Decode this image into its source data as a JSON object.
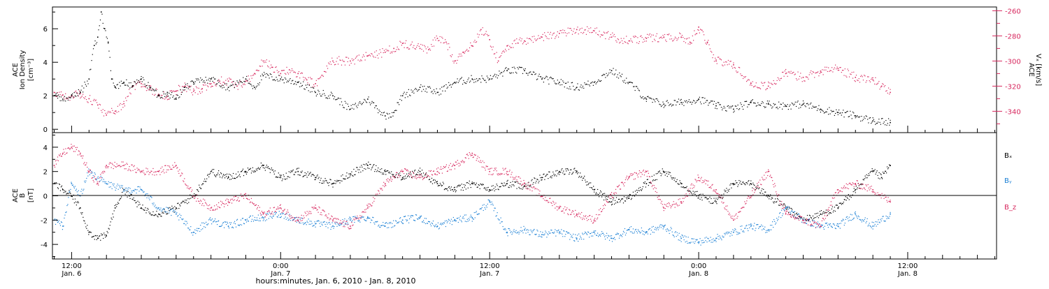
{
  "colors": {
    "axes": "#000000",
    "density": "#000000",
    "vx": "#d7265d",
    "bx": "#000000",
    "by": "#1a7fd4",
    "bz": "#d7265d"
  },
  "x_axis": {
    "title": "hours:minutes, Jan.  6, 2010 - Jan.  8, 2010",
    "ticks": [
      {
        "hour": 0,
        "time": "12:00",
        "date": "Jan. 6"
      },
      {
        "hour": 12,
        "time": "0:00",
        "date": "Jan. 7"
      },
      {
        "hour": 24,
        "time": "12:00",
        "date": "Jan. 7"
      },
      {
        "hour": 36,
        "time": "0:00",
        "date": "Jan. 8"
      },
      {
        "hour": 48,
        "time": "12:00",
        "date": "Jan. 8"
      }
    ]
  },
  "chart_data": [
    {
      "type": "scatter",
      "panel": "top",
      "xlim_hours": [
        -1.1,
        53.1
      ],
      "left_axis": {
        "label_line1": "ACE",
        "label_line2": "Ion Density",
        "units": "[cm⁻³]",
        "ylim": [
          -0.2,
          7.3
        ],
        "ticks": [
          0,
          2,
          4,
          6
        ]
      },
      "right_axis": {
        "label_line1": "ACE",
        "label_line2": "Vₓ [km/s]",
        "ylim": [
          -357,
          -257
        ],
        "ticks": [
          -340,
          -320,
          -300,
          -280,
          -260
        ]
      },
      "series": [
        {
          "name": "Ion Density",
          "axis": "left",
          "color": "#000000",
          "x": [
            -1.0,
            -0.5,
            0.0,
            0.5,
            1.0,
            1.3,
            1.5,
            1.7,
            1.9,
            2.1,
            2.3,
            2.5,
            3.0,
            3.5,
            4.0,
            4.5,
            5.0,
            5.5,
            6.0,
            6.5,
            7.0,
            8.0,
            9.0,
            10.0,
            10.5,
            11.0,
            12.0,
            13.0,
            14.0,
            15.0,
            16.0,
            17.0,
            18.0,
            18.5,
            19.0,
            20.0,
            21.0,
            22.0,
            23.0,
            24.0,
            25.0,
            26.0,
            27.0,
            28.0,
            29.0,
            30.0,
            31.0,
            32.0,
            33.0,
            34.0,
            35.0,
            36.0,
            37.0,
            38.0,
            39.0,
            40.0,
            41.0,
            42.0,
            43.0,
            44.0,
            45.0,
            46.0,
            47.0
          ],
          "values": [
            2.0,
            1.8,
            2.0,
            2.2,
            3.0,
            5.0,
            5.5,
            7.0,
            6.0,
            5.2,
            3.0,
            2.5,
            2.8,
            2.6,
            3.0,
            2.5,
            2.0,
            2.2,
            1.8,
            2.5,
            2.8,
            3.0,
            2.5,
            3.0,
            2.5,
            3.2,
            3.0,
            2.8,
            2.2,
            2.0,
            1.2,
            1.8,
            0.8,
            1.0,
            2.0,
            2.5,
            2.2,
            2.8,
            3.0,
            3.0,
            3.5,
            3.5,
            3.0,
            2.8,
            2.5,
            2.8,
            3.5,
            2.8,
            1.8,
            1.5,
            1.6,
            1.8,
            1.4,
            1.2,
            1.6,
            1.5,
            1.4,
            1.5,
            1.2,
            1.0,
            0.8,
            0.5,
            0.4
          ]
        },
        {
          "name": "Vₓ",
          "axis": "right",
          "color": "#d7265d",
          "x": [
            -1.0,
            -0.5,
            0.0,
            0.5,
            1.0,
            1.5,
            2.0,
            2.5,
            3.0,
            3.5,
            4.0,
            4.5,
            5.0,
            5.5,
            6.0,
            6.5,
            7.0,
            7.5,
            8.0,
            8.5,
            9.0,
            9.5,
            10.0,
            10.5,
            11.0,
            11.5,
            12.0,
            12.5,
            13.0,
            13.5,
            14.0,
            15.0,
            16.0,
            17.0,
            18.0,
            18.5,
            19.0,
            20.0,
            20.5,
            21.0,
            21.5,
            22.0,
            22.5,
            23.0,
            23.5,
            24.0,
            24.5,
            25.0,
            26.0,
            27.0,
            28.0,
            29.0,
            30.0,
            31.0,
            32.0,
            33.0,
            34.0,
            35.0,
            35.5,
            36.0,
            36.5,
            37.0,
            38.0,
            39.0,
            40.0,
            41.0,
            42.0,
            43.0,
            44.0,
            45.0,
            46.0,
            46.5,
            47.0
          ],
          "values": [
            -325,
            -327,
            -328,
            -326,
            -330,
            -335,
            -343,
            -340,
            -334,
            -320,
            -318,
            -322,
            -327,
            -328,
            -324,
            -320,
            -324,
            -322,
            -318,
            -316,
            -316,
            -320,
            -316,
            -310,
            -300,
            -305,
            -310,
            -307,
            -310,
            -315,
            -318,
            -300,
            -300,
            -296,
            -293,
            -290,
            -286,
            -290,
            -291,
            -282,
            -285,
            -300,
            -293,
            -288,
            -275,
            -283,
            -300,
            -288,
            -284,
            -281,
            -278,
            -275,
            -276,
            -281,
            -284,
            -282,
            -281,
            -281,
            -285,
            -273,
            -285,
            -300,
            -303,
            -318,
            -320,
            -310,
            -313,
            -308,
            -306,
            -313,
            -315,
            -320,
            -325
          ]
        }
      ]
    },
    {
      "type": "scatter",
      "panel": "bottom",
      "xlim_hours": [
        -1.1,
        53.1
      ],
      "left_axis": {
        "label_line1": "ACE",
        "label_line2": "B",
        "units": "[nT]",
        "ylim": [
          -5.2,
          5.2
        ],
        "ticks": [
          -4,
          -2,
          0,
          2,
          4
        ]
      },
      "legend": {
        "placement": "right",
        "entries": [
          {
            "text": "Bₓ",
            "color": "#000000"
          },
          {
            "text": "Bᵧ",
            "color": "#1a7fd4"
          },
          {
            "text": "B_z",
            "color": "#d7265d"
          }
        ]
      },
      "series": [
        {
          "name": "Bₓ",
          "color": "#000000",
          "x": [
            -1.0,
            -0.5,
            0.0,
            0.5,
            1.0,
            1.5,
            2.0,
            2.5,
            3.0,
            4.0,
            5.0,
            6.0,
            7.0,
            8.0,
            9.0,
            10.0,
            11.0,
            12.0,
            13.0,
            14.0,
            15.0,
            16.0,
            17.0,
            18.0,
            19.0,
            20.0,
            21.0,
            22.0,
            23.0,
            24.0,
            25.0,
            26.0,
            27.0,
            28.0,
            29.0,
            30.0,
            31.0,
            32.0,
            33.0,
            34.0,
            35.0,
            36.0,
            37.0,
            38.0,
            39.0,
            40.0,
            41.0,
            42.0,
            43.0,
            44.0,
            45.0,
            46.0,
            46.5,
            47.0
          ],
          "values": [
            1.0,
            0.5,
            0.0,
            -1.0,
            -3.0,
            -3.5,
            -3.3,
            -1.0,
            0.5,
            -1.0,
            -1.5,
            -1.0,
            0.0,
            2.0,
            1.5,
            2.0,
            2.5,
            1.5,
            2.0,
            1.5,
            1.0,
            1.8,
            2.5,
            2.0,
            1.5,
            2.0,
            1.0,
            0.5,
            1.0,
            0.5,
            1.0,
            0.8,
            1.5,
            2.0,
            2.0,
            0.5,
            -0.5,
            -0.2,
            1.0,
            2.0,
            1.0,
            0.0,
            -0.5,
            1.0,
            1.0,
            0.0,
            -1.0,
            -2.0,
            -1.5,
            -1.0,
            0.5,
            2.0,
            1.5,
            2.5
          ]
        },
        {
          "name": "Bᵧ",
          "color": "#1a7fd4",
          "x": [
            -1.0,
            -0.5,
            0.0,
            0.5,
            1.0,
            2.0,
            3.0,
            4.0,
            5.0,
            6.0,
            7.0,
            8.0,
            9.0,
            10.0,
            11.0,
            12.0,
            13.0,
            14.0,
            15.0,
            16.0,
            17.0,
            18.0,
            19.0,
            20.0,
            21.0,
            22.0,
            23.0,
            24.0,
            25.0,
            26.0,
            27.0,
            28.0,
            29.0,
            30.0,
            31.0,
            32.0,
            33.0,
            34.0,
            35.0,
            36.0,
            37.0,
            38.0,
            39.0,
            40.0,
            41.0,
            42.0,
            43.0,
            44.0,
            45.0,
            46.0,
            47.0
          ],
          "values": [
            -2.0,
            -2.5,
            1.0,
            0.0,
            2.0,
            1.0,
            0.5,
            0.5,
            -1.0,
            -1.5,
            -3.0,
            -2.0,
            -2.5,
            -2.0,
            -1.8,
            -1.5,
            -2.0,
            -2.3,
            -2.5,
            -2.0,
            -1.8,
            -2.5,
            -2.0,
            -1.8,
            -2.5,
            -2.0,
            -1.8,
            -0.5,
            -3.0,
            -2.8,
            -3.2,
            -3.0,
            -3.5,
            -3.0,
            -3.5,
            -2.8,
            -3.0,
            -2.5,
            -3.5,
            -3.8,
            -3.5,
            -3.0,
            -2.5,
            -2.8,
            -1.0,
            -2.0,
            -2.5,
            -2.5,
            -1.5,
            -2.5,
            -1.5
          ]
        },
        {
          "name": "B_z",
          "color": "#d7265d",
          "x": [
            -1.0,
            -0.5,
            0.0,
            0.5,
            1.0,
            1.5,
            2.0,
            3.0,
            4.0,
            5.0,
            6.0,
            7.0,
            8.0,
            9.0,
            10.0,
            11.0,
            12.0,
            13.0,
            14.0,
            15.0,
            16.0,
            17.0,
            18.0,
            19.0,
            20.0,
            21.0,
            22.0,
            23.0,
            24.0,
            25.0,
            26.0,
            27.0,
            28.0,
            29.0,
            30.0,
            31.0,
            32.0,
            33.0,
            34.0,
            35.0,
            36.0,
            37.0,
            38.0,
            39.0,
            40.0,
            41.0,
            42.0,
            43.0,
            44.0,
            45.0,
            46.0,
            47.0
          ],
          "values": [
            2.5,
            3.5,
            4.0,
            3.5,
            2.0,
            1.0,
            2.5,
            2.5,
            2.0,
            2.0,
            2.5,
            0.0,
            -1.0,
            -0.5,
            0.0,
            -1.5,
            -1.0,
            -2.0,
            -1.0,
            -2.0,
            -2.5,
            -1.0,
            1.0,
            2.0,
            1.5,
            2.0,
            2.5,
            3.5,
            2.0,
            2.0,
            1.0,
            0.0,
            -1.0,
            -1.5,
            -2.0,
            0.0,
            1.5,
            2.0,
            -1.0,
            -0.5,
            1.5,
            0.5,
            -2.0,
            0.0,
            2.0,
            -1.5,
            -2.0,
            -2.5,
            0.5,
            1.0,
            0.5,
            -0.5
          ]
        }
      ]
    }
  ]
}
